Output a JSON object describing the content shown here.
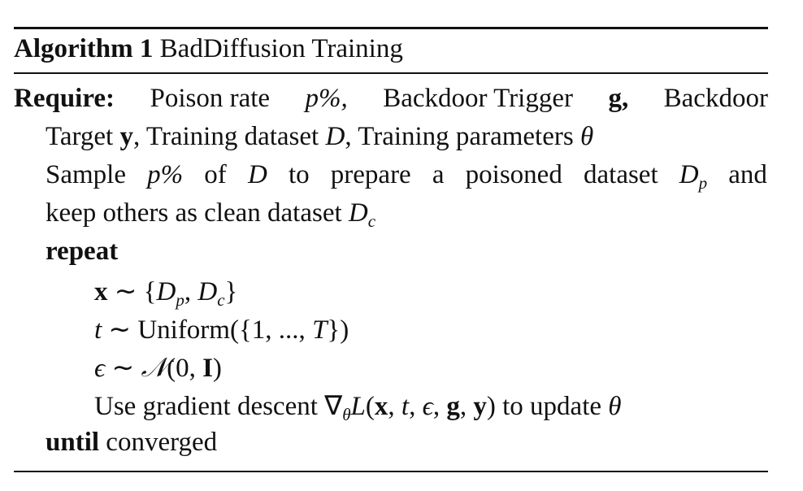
{
  "caption": {
    "label": "Algorithm 1",
    "title": "BadDiffusion Training"
  },
  "require": {
    "keyword": "Require:",
    "line1_words": [
      "Poison rate",
      "p%,",
      "Backdoor Trigger",
      "g,",
      "Backdoor"
    ],
    "line2": {
      "a": "Target",
      "y_sym": "y",
      "b": ", Training dataset",
      "d_sym": "D",
      "c": ", Training parameters",
      "theta": "θ"
    }
  },
  "sample": {
    "line1_words": [
      "Sample",
      "p%",
      "of",
      "D",
      "to",
      "prepare",
      "a",
      "poisoned",
      "dataset",
      "D",
      "p",
      "and"
    ],
    "line2": {
      "text": "keep others as clean dataset",
      "d_sym": "D",
      "sub": "c"
    }
  },
  "repeat_keyword": "repeat",
  "body": {
    "x_line": {
      "x": "x",
      "rel": " ∼ {",
      "d1": "D",
      "s1": "p",
      "comma": ", ",
      "d2": "D",
      "s2": "c",
      "close": "}"
    },
    "t_line": {
      "t": "t",
      "rel": " ∼ Uniform({1, ..., ",
      "T": "T",
      "close": "})"
    },
    "eps_line": {
      "eps": "ϵ",
      "rel": " ∼ ",
      "N": "𝒩",
      "args_open": "(0, ",
      "I": "I",
      "close": ")"
    },
    "grad_line": {
      "a": "Use gradient descent ∇",
      "theta_sub": "θ",
      "L": "L",
      "open": "(",
      "x": "x",
      "c1": ", ",
      "t": "t",
      "c2": ", ",
      "eps": "ϵ",
      "c3": ", ",
      "g": "g",
      "c4": ", ",
      "y": "y",
      "close": ")",
      "b": " to update ",
      "theta": "θ"
    }
  },
  "until": {
    "keyword": "until",
    "text": " converged"
  }
}
